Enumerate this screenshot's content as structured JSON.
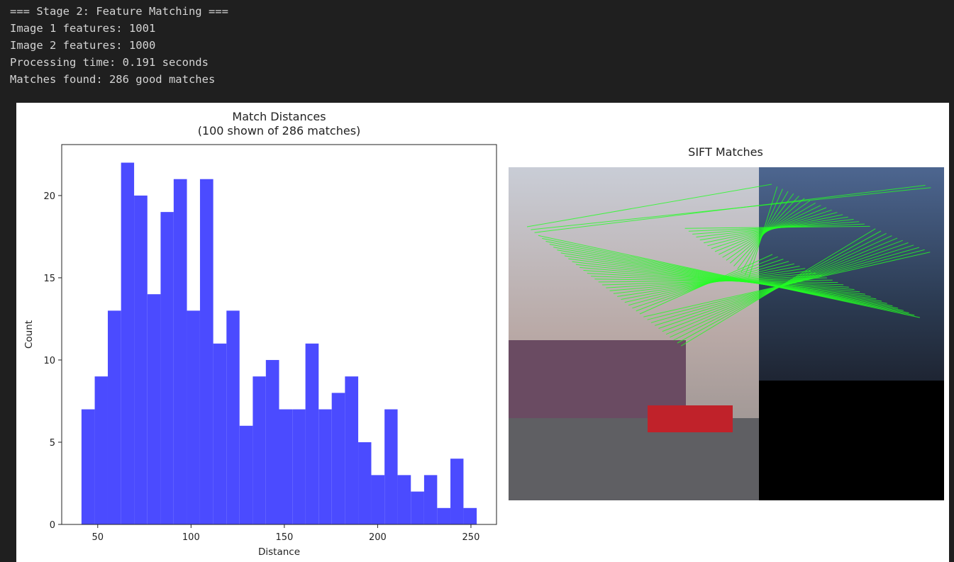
{
  "console": [
    "=== Stage 2: Feature Matching ===",
    "Image 1 features: 1001",
    "Image 2 features: 1000",
    "Processing time: 0.191 seconds",
    "Matches found: 286 good matches"
  ],
  "image_panel": {
    "title": "SIFT Matches"
  },
  "chart_data": {
    "type": "histogram",
    "title": [
      "Match Distances",
      "(100 shown of 286 matches)"
    ],
    "xlabel": "Distance",
    "ylabel": "Count",
    "color": "#4b4bff",
    "bins": [
      41.3,
      48.4,
      55.4,
      62.5,
      69.5,
      76.6,
      83.7,
      90.7,
      97.8,
      104.8,
      111.9,
      119.0,
      126.0,
      133.1,
      140.1,
      147.2,
      154.3,
      161.3,
      168.4,
      175.4,
      182.5,
      189.6,
      196.6,
      203.7,
      210.7,
      217.8,
      224.9,
      231.9,
      239.0,
      246.0,
      253.1
    ],
    "values": [
      7,
      9,
      13,
      22,
      20,
      14,
      19,
      21,
      13,
      21,
      11,
      13,
      6,
      9,
      10,
      7,
      7,
      11,
      7,
      8,
      9,
      5,
      3,
      7,
      3,
      2,
      3,
      1,
      4,
      1
    ],
    "xlim": [
      30.7,
      263.7
    ],
    "ylim": [
      0,
      23.1
    ],
    "xticks": [
      50,
      100,
      150,
      200,
      250
    ],
    "yticks": [
      0,
      5,
      10,
      15,
      20
    ]
  }
}
